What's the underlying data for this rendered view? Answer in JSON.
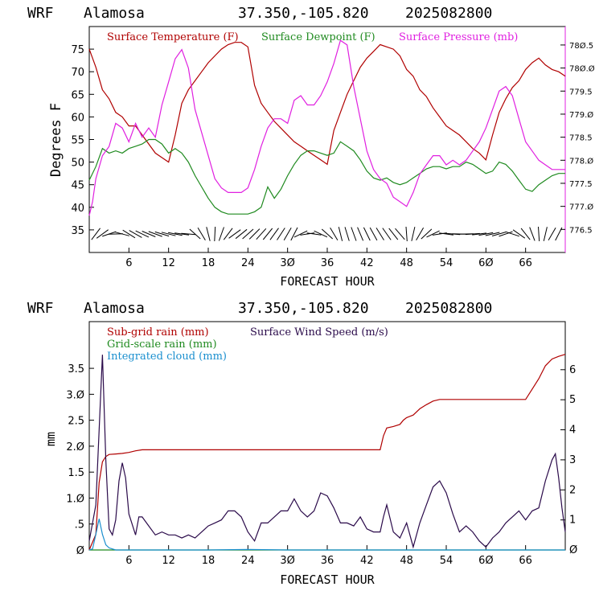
{
  "colors": {
    "temperature": "#b00000",
    "dewpoint": "#1f8a1f",
    "pressure": "#e020e0",
    "subgrid": "#b00000",
    "gridscale": "#1f8a1f",
    "cloud": "#1a8fcf",
    "wind": "#2a0a4a"
  },
  "chart_data": [
    {
      "type": "line",
      "header": {
        "model": "WRF",
        "location": "Alamosa",
        "coords": "37.350,-105.820",
        "init": "2025082800"
      },
      "xlabel": "FORECAST HOUR",
      "ylabel": "Degrees F",
      "xlim": [
        0,
        72
      ],
      "ylim": [
        30,
        80
      ],
      "y2lim": [
        776.0,
        780.9
      ],
      "xticks": [
        6,
        12,
        18,
        24,
        30,
        36,
        42,
        48,
        54,
        60,
        66
      ],
      "xtick_labels": [
        "6",
        "12",
        "18",
        "24",
        "3Ø",
        "36",
        "42",
        "48",
        "54",
        "6Ø",
        "66"
      ],
      "yticks": [
        35,
        40,
        45,
        50,
        55,
        60,
        65,
        70,
        75
      ],
      "y2ticks": [
        776.5,
        777.0,
        777.5,
        778.0,
        778.5,
        779.0,
        779.5,
        780.0,
        780.5
      ],
      "y2tick_labels": [
        "776.5",
        "777.Ø",
        "777.5",
        "778.Ø",
        "778.5",
        "779.Ø",
        "779.5",
        "78Ø.Ø",
        "78Ø.5"
      ],
      "legend": [
        "Surface Temperature (F)",
        "Surface Dewpoint (F)",
        "Surface Pressure (mb)"
      ],
      "series": [
        {
          "name": "Surface Temperature (F)",
          "axis": "left",
          "x": [
            0,
            0.5,
            1,
            2,
            3,
            4,
            5,
            6,
            7,
            8,
            9,
            10,
            11,
            12,
            13,
            14,
            15,
            16,
            17,
            18,
            19,
            20,
            21,
            22,
            23,
            24,
            25,
            26,
            27,
            28,
            29,
            30,
            31,
            32,
            33,
            34,
            35,
            36,
            37,
            38,
            39,
            40,
            41,
            42,
            43,
            44,
            45,
            46,
            47,
            48,
            49,
            50,
            51,
            52,
            53,
            54,
            55,
            56,
            57,
            58,
            59,
            60,
            61,
            62,
            63,
            64,
            65,
            66,
            67,
            68,
            69,
            70,
            71,
            72
          ],
          "y": [
            75,
            73,
            71,
            66,
            64,
            61,
            60,
            58,
            58,
            56,
            54,
            52,
            51,
            50,
            56,
            63,
            66,
            68,
            70,
            72,
            73.5,
            75,
            76,
            76.5,
            76.5,
            75.5,
            67,
            63,
            61,
            59,
            57.5,
            56,
            54.5,
            53.5,
            52.5,
            51.5,
            50.5,
            49.5,
            57,
            61,
            65,
            68,
            71,
            73,
            74.5,
            76,
            75.5,
            75,
            73.5,
            70.5,
            69,
            66,
            64.5,
            62,
            60,
            58,
            57,
            56,
            54.5,
            53,
            52,
            50.5,
            56,
            61,
            64,
            66.5,
            68,
            70.5,
            72,
            73,
            71.5,
            70.5,
            70,
            69
          ]
        },
        {
          "name": "Surface Dewpoint (F)",
          "axis": "left",
          "x": [
            0,
            1,
            2,
            3,
            4,
            5,
            6,
            7,
            8,
            9,
            10,
            11,
            12,
            13,
            14,
            15,
            16,
            17,
            18,
            19,
            20,
            21,
            22,
            23,
            24,
            25,
            26,
            27,
            28,
            29,
            30,
            31,
            32,
            33,
            34,
            35,
            36,
            37,
            38,
            39,
            40,
            41,
            42,
            43,
            44,
            45,
            46,
            47,
            48,
            49,
            50,
            51,
            52,
            53,
            54,
            55,
            56,
            57,
            58,
            59,
            60,
            61,
            62,
            63,
            64,
            65,
            66,
            67,
            68,
            69,
            70,
            71,
            72
          ],
          "y": [
            46,
            49,
            53,
            52,
            52.5,
            52,
            53,
            53.5,
            54,
            55,
            55,
            54,
            52,
            53,
            52,
            50,
            47,
            44.5,
            42,
            40,
            39,
            38.5,
            38.5,
            38.5,
            38.5,
            39,
            40,
            44.5,
            42,
            44,
            47,
            49.5,
            51.5,
            52.5,
            52.5,
            52,
            51.5,
            52,
            54.5,
            53.5,
            52.5,
            50.5,
            48,
            46.5,
            46,
            46.5,
            45.5,
            45,
            45.5,
            46.5,
            47.5,
            48.5,
            49,
            49,
            48.5,
            49,
            49,
            50,
            49.5,
            48.5,
            47.5,
            48,
            50,
            49.5,
            48,
            46,
            44,
            43.5,
            45,
            46,
            47,
            47.5,
            47.5
          ]
        },
        {
          "name": "Surface Pressure (mb)",
          "axis": "right",
          "x": [
            0,
            0.5,
            1,
            2,
            3,
            4,
            5,
            6,
            7,
            8,
            9,
            10,
            11,
            12,
            13,
            14,
            15,
            16,
            17,
            18,
            19,
            20,
            21,
            22,
            23,
            24,
            25,
            26,
            27,
            28,
            29,
            30,
            31,
            32,
            33,
            34,
            35,
            36,
            37,
            38,
            39,
            40,
            41,
            42,
            43,
            44,
            45,
            46,
            47,
            48,
            49,
            50,
            51,
            52,
            53,
            54,
            55,
            56,
            57,
            58,
            59,
            60,
            61,
            62,
            63,
            64,
            65,
            66,
            67,
            68,
            69,
            70,
            71,
            72
          ],
          "y": [
            776.8,
            777.1,
            777.6,
            778.1,
            778.3,
            778.8,
            778.7,
            778.4,
            778.8,
            778.5,
            778.7,
            778.5,
            779.2,
            779.7,
            780.2,
            780.4,
            780.0,
            779.1,
            778.6,
            778.1,
            777.6,
            777.4,
            777.3,
            777.3,
            777.3,
            777.4,
            777.8,
            778.3,
            778.7,
            778.9,
            778.9,
            778.8,
            779.3,
            779.4,
            779.2,
            779.2,
            779.4,
            779.7,
            780.1,
            780.6,
            780.5,
            779.6,
            778.9,
            778.2,
            777.8,
            777.6,
            777.5,
            777.2,
            777.1,
            777.0,
            777.3,
            777.7,
            777.9,
            778.1,
            778.1,
            777.9,
            778.0,
            777.9,
            778.0,
            778.2,
            778.4,
            778.7,
            779.1,
            779.5,
            779.6,
            779.4,
            778.9,
            778.4,
            778.2,
            778.0,
            777.9,
            777.8,
            777.8,
            777.8
          ]
        }
      ]
    },
    {
      "type": "line",
      "header": {
        "model": "WRF",
        "location": "Alamosa",
        "coords": "37.350,-105.820",
        "init": "2025082800"
      },
      "xlabel": "FORECAST HOUR",
      "ylabel": "mm",
      "xlim": [
        0,
        72
      ],
      "ylim": [
        0,
        4.4
      ],
      "y2lim": [
        0,
        7.6
      ],
      "xticks": [
        6,
        12,
        18,
        24,
        30,
        36,
        42,
        48,
        54,
        60,
        66
      ],
      "xtick_labels": [
        "6",
        "12",
        "18",
        "24",
        "3Ø",
        "36",
        "42",
        "48",
        "54",
        "6Ø",
        "66"
      ],
      "yticks": [
        0,
        0.5,
        1.0,
        1.5,
        2.0,
        2.5,
        3.0,
        3.5
      ],
      "ytick_labels": [
        "Ø",
        ".5",
        "1.Ø",
        "1.5",
        "2.Ø",
        "2.5",
        "3.Ø",
        "3.5"
      ],
      "y2ticks": [
        0,
        1,
        2,
        3,
        4,
        5,
        6
      ],
      "y2tick_labels": [
        "Ø",
        "1",
        "2",
        "3",
        "4",
        "5",
        "6"
      ],
      "legend": [
        "Sub-grid rain (mm)",
        "Grid-scale rain (mm)",
        "Integrated cloud (mm)",
        "Surface Wind Speed (m/s)"
      ],
      "series": [
        {
          "name": "Sub-grid rain (mm)",
          "axis": "left",
          "x": [
            0,
            1,
            1.5,
            2,
            2.5,
            3,
            4,
            5,
            6,
            7,
            8,
            12,
            18,
            24,
            30,
            36,
            42,
            44,
            44.5,
            45,
            46,
            47,
            47.5,
            48,
            49,
            50,
            51,
            52,
            53,
            54,
            60,
            66,
            67,
            68,
            69,
            70,
            71,
            72
          ],
          "y": [
            0,
            0.3,
            1.3,
            1.7,
            1.8,
            1.84,
            1.85,
            1.86,
            1.88,
            1.91,
            1.93,
            1.93,
            1.93,
            1.93,
            1.93,
            1.93,
            1.93,
            1.93,
            2.2,
            2.35,
            2.38,
            2.42,
            2.5,
            2.55,
            2.6,
            2.72,
            2.8,
            2.87,
            2.9,
            2.9,
            2.9,
            2.9,
            3.1,
            3.3,
            3.55,
            3.68,
            3.73,
            3.77
          ]
        },
        {
          "name": "Grid-scale rain (mm)",
          "axis": "left",
          "x": [
            0,
            72
          ],
          "y": [
            0,
            0
          ]
        },
        {
          "name": "Integrated cloud (mm)",
          "axis": "left",
          "x": [
            0,
            0.5,
            1,
            1.5,
            2,
            2.5,
            3,
            3.5,
            4,
            6,
            12,
            18,
            24,
            30,
            36,
            42,
            48,
            54,
            60,
            66,
            72
          ],
          "y": [
            0,
            0.02,
            0.3,
            0.6,
            0.3,
            0.1,
            0.04,
            0.02,
            0,
            0,
            0,
            0,
            0.01,
            0,
            0,
            0,
            0,
            0,
            0,
            0,
            0
          ]
        },
        {
          "name": "Surface Wind Speed (m/s)",
          "axis": "right",
          "x": [
            0,
            1,
            1.5,
            2,
            2.5,
            3,
            3.5,
            4,
            4.5,
            5,
            5.5,
            6,
            7,
            7.5,
            8,
            9,
            10,
            11,
            12,
            13,
            14,
            15,
            16,
            17,
            18,
            19,
            20,
            21,
            22,
            23,
            24,
            25,
            26,
            27,
            28,
            29,
            30,
            31,
            32,
            33,
            34,
            35,
            36,
            37,
            38,
            39,
            40,
            41,
            42,
            43,
            44,
            44.5,
            45,
            46,
            47,
            48,
            48.5,
            49,
            50,
            51,
            52,
            53,
            54,
            55,
            56,
            57,
            58,
            59,
            60,
            61,
            62,
            63,
            64,
            65,
            66,
            67,
            68,
            69,
            70,
            70.5,
            71,
            71.5,
            72
          ],
          "y": [
            0.3,
            1.5,
            4,
            6.5,
            3,
            0.7,
            0.5,
            1,
            2.3,
            2.9,
            2.4,
            1.2,
            0.5,
            1.1,
            1.1,
            0.8,
            0.5,
            0.6,
            0.5,
            0.5,
            0.4,
            0.5,
            0.4,
            0.6,
            0.8,
            0.9,
            1.0,
            1.3,
            1.3,
            1.1,
            0.6,
            0.3,
            0.9,
            0.9,
            1.1,
            1.3,
            1.3,
            1.7,
            1.3,
            1.1,
            1.3,
            1.9,
            1.8,
            1.4,
            0.9,
            0.9,
            0.8,
            1.1,
            0.7,
            0.6,
            0.6,
            1.1,
            1.5,
            0.6,
            0.4,
            0.9,
            0.5,
            0.1,
            0.9,
            1.5,
            2.1,
            2.3,
            1.9,
            1.2,
            0.6,
            0.8,
            0.6,
            0.3,
            0.1,
            0.4,
            0.6,
            0.9,
            1.1,
            1.3,
            1.0,
            1.3,
            1.4,
            2.3,
            3.0,
            3.2,
            2.4,
            1.4,
            0.6
          ]
        }
      ],
      "wind_barb_row": "present"
    }
  ]
}
